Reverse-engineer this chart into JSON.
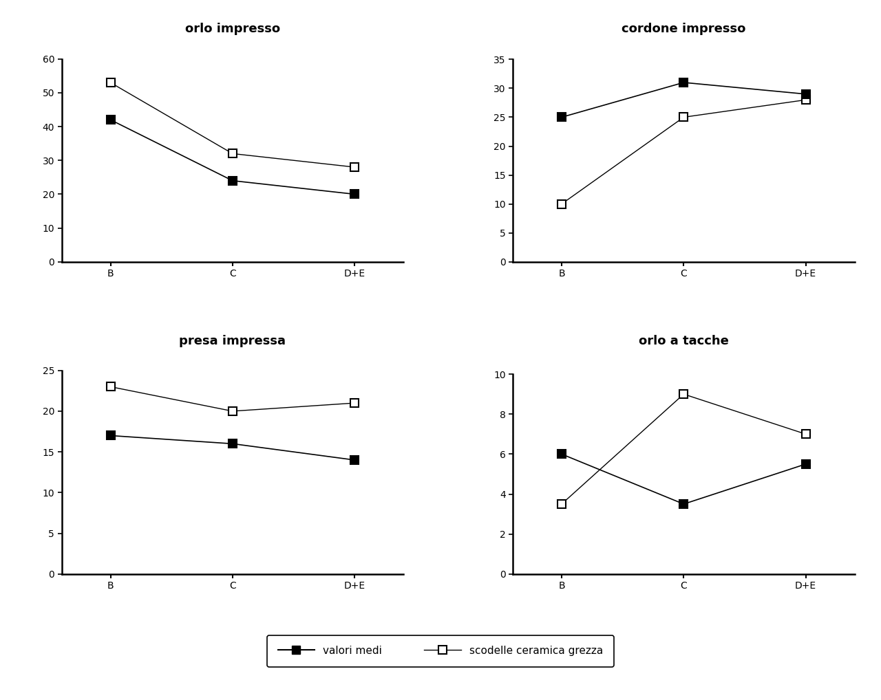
{
  "subplots": [
    {
      "title": "orlo impresso",
      "x_labels": [
        "B",
        "C",
        "D+E"
      ],
      "valori_medi": [
        42,
        24,
        20
      ],
      "scodelle": [
        53,
        32,
        28
      ],
      "ylim": [
        0,
        65
      ],
      "yticks": [
        0,
        10,
        20,
        30,
        40,
        50,
        60
      ]
    },
    {
      "title": "cordone impresso",
      "x_labels": [
        "B",
        "C",
        "D+E"
      ],
      "valori_medi": [
        25,
        31,
        29
      ],
      "scodelle": [
        10,
        25,
        28
      ],
      "ylim": [
        0,
        38
      ],
      "yticks": [
        0,
        5,
        10,
        15,
        20,
        25,
        30,
        35
      ]
    },
    {
      "title": "presa impressa",
      "x_labels": [
        "B",
        "C",
        "D+E"
      ],
      "valori_medi": [
        17,
        16,
        14
      ],
      "scodelle": [
        23,
        20,
        21
      ],
      "ylim": [
        0,
        27
      ],
      "yticks": [
        0,
        5,
        10,
        15,
        20,
        25
      ]
    },
    {
      "title": "orlo a tacche",
      "x_labels": [
        "B",
        "C",
        "D+E"
      ],
      "valori_medi": [
        6,
        3.5,
        5.5
      ],
      "scodelle": [
        3.5,
        9,
        7
      ],
      "ylim": [
        0,
        11
      ],
      "yticks": [
        0,
        2,
        4,
        6,
        8,
        10
      ]
    }
  ],
  "legend": {
    "valori_medi_label": "valori medi",
    "scodelle_label": "scodelle ceramica grezza"
  },
  "bg_color": "#ffffff",
  "title_fontsize": 13,
  "tick_fontsize": 10,
  "legend_fontsize": 11
}
